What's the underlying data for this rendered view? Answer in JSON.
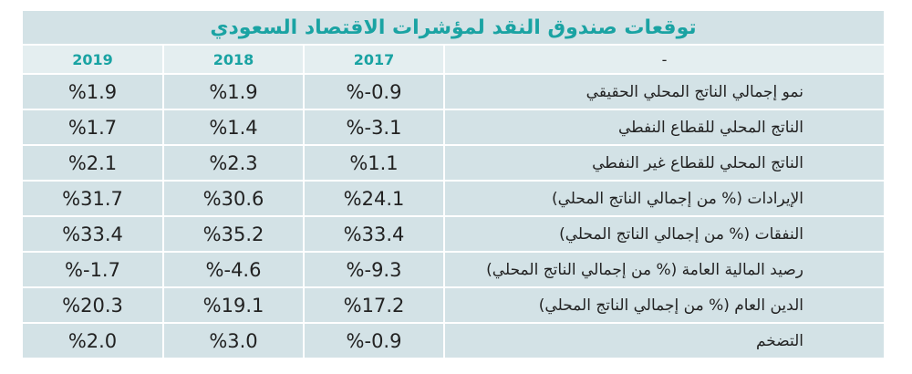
{
  "title": "توقعات صندوق النقد لمؤشرات الاقتصاد السعودي",
  "header": {
    "indicator": "-",
    "y2017": "2017",
    "y2018": "2018",
    "y2019": "2019"
  },
  "rows": [
    {
      "label": "نمو إجمالي الناتج المحلي الحقيقي",
      "y2017": "%-0.9",
      "y2018": "%1.9",
      "y2019": "%1.9"
    },
    {
      "label": "الناتج المحلي للقطاع النفطي",
      "y2017": "%-3.1",
      "y2018": "%1.4",
      "y2019": "%1.7"
    },
    {
      "label": "الناتج المحلي للقطاع غير النفطي",
      "y2017": "%1.1",
      "y2018": "%2.3",
      "y2019": "%2.1"
    },
    {
      "label": "الإيرادات (% من إجمالي الناتج المحلي)",
      "y2017": "%24.1",
      "y2018": "%30.6",
      "y2019": "%31.7"
    },
    {
      "label": "النفقات (% من إجمالي الناتج المحلي)",
      "y2017": "%33.4",
      "y2018": "%35.2",
      "y2019": "%33.4"
    },
    {
      "label": "رصيد المالية العامة (% من إجمالي الناتج المحلي)",
      "y2017": "%-9.3",
      "y2018": "%-4.6",
      "y2019": "%-1.7"
    },
    {
      "label": "الدين العام (% من إجمالي الناتج المحلي)",
      "y2017": "%17.2",
      "y2018": "%19.1",
      "y2019": "%20.3"
    },
    {
      "label": "التضخم",
      "y2017": "%-0.9",
      "y2018": "%3.0",
      "y2019": "%2.0"
    }
  ],
  "colors": {
    "accent": "#1aa3a3",
    "background": "#d3e2e6",
    "header_row": "#e4eef0"
  }
}
